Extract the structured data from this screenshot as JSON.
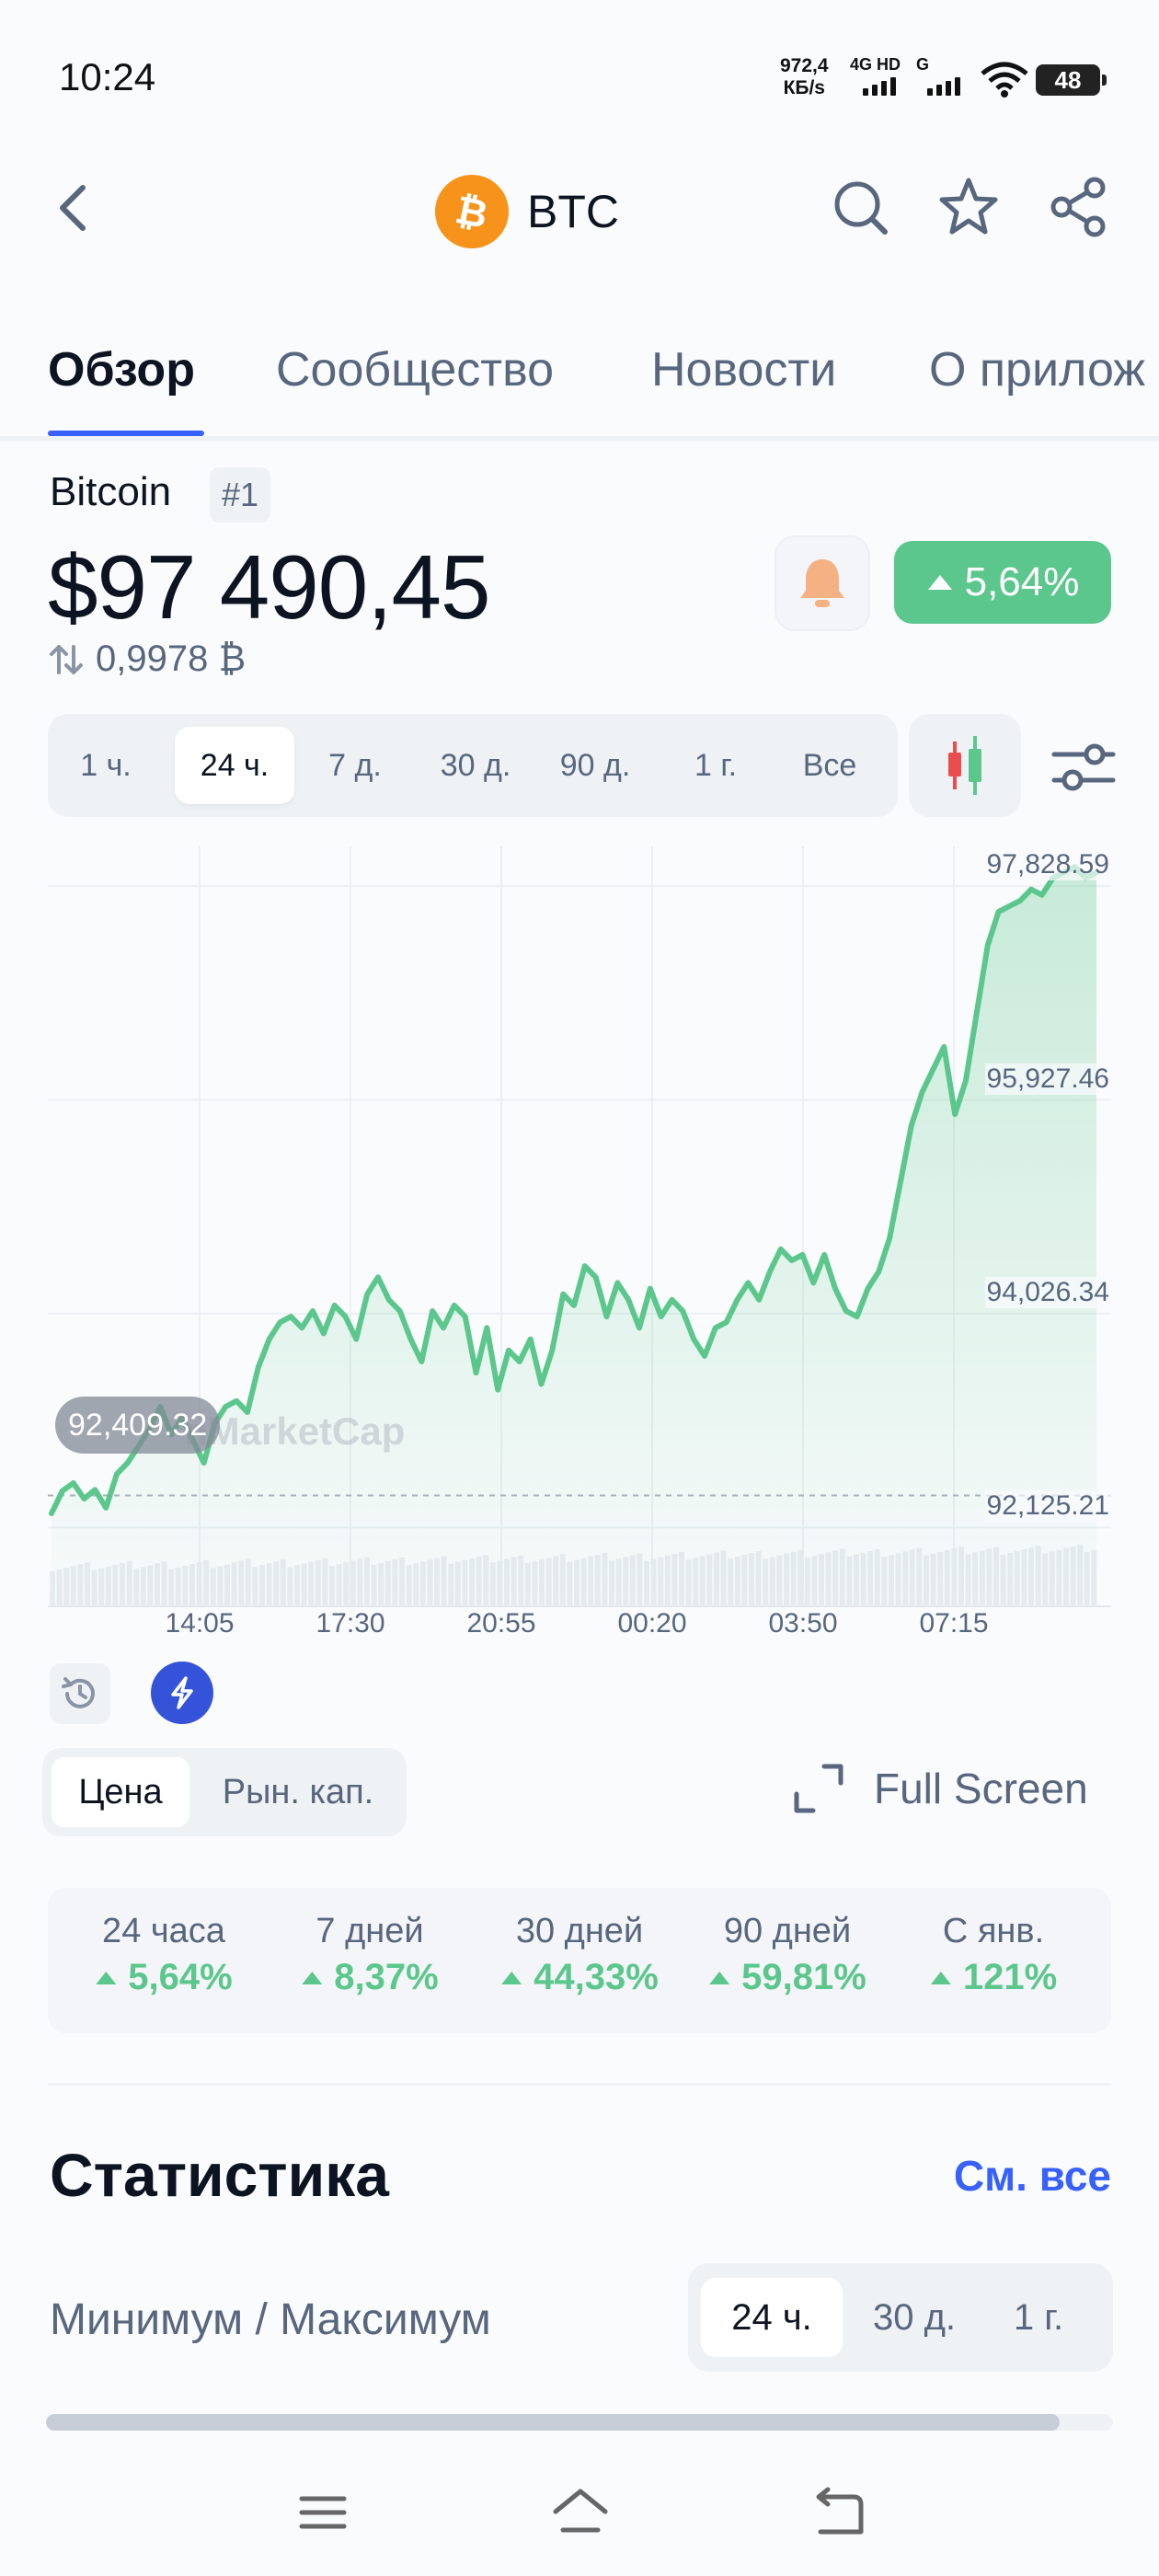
{
  "status_bar": {
    "time": "10:24",
    "speed_value": "972,4",
    "speed_unit": "КБ/s",
    "network_1": "4G HD",
    "network_2": "G",
    "battery": "48"
  },
  "header": {
    "symbol": "BTC",
    "icons": [
      "back-icon",
      "bitcoin-logo-icon",
      "search-icon",
      "star-icon",
      "share-icon"
    ]
  },
  "tabs": [
    {
      "label": "Обзор",
      "active": true
    },
    {
      "label": "Сообщество",
      "active": false
    },
    {
      "label": "Новости",
      "active": false
    },
    {
      "label": "О прилож",
      "active": false
    }
  ],
  "coin": {
    "name": "Bitcoin",
    "rank": "#1",
    "price": "$97 490,45",
    "btc_price": "0,9978 ₿",
    "change_24h": "5,64%",
    "change_color": "#5cc78c"
  },
  "time_ranges": [
    {
      "label": "1 ч.",
      "active": false
    },
    {
      "label": "24 ч.",
      "active": true
    },
    {
      "label": "7 д.",
      "active": false
    },
    {
      "label": "30 д.",
      "active": false
    },
    {
      "label": "90 д.",
      "active": false
    },
    {
      "label": "1 г.",
      "active": false
    },
    {
      "label": "Все",
      "active": false
    }
  ],
  "chart_data": {
    "type": "area",
    "y_ticks": [
      "97,828.59",
      "95,927.46",
      "94,026.34",
      "92,125.21"
    ],
    "ylim": [
      91800,
      98100
    ],
    "x_ticks": [
      "14:05",
      "17:30",
      "20:55",
      "00:20",
      "03:50",
      "07:15"
    ],
    "open_price": "92,409.32",
    "open_value": 92409.32,
    "watermark": "nMarketCap",
    "line_color": "#5cc78c",
    "series": [
      {
        "x": [
          0,
          1,
          2,
          3,
          4,
          5,
          6,
          7,
          8,
          9,
          10,
          11,
          12,
          13,
          14,
          15,
          16,
          17,
          18,
          19,
          20,
          21,
          22,
          23,
          24,
          25,
          26,
          27,
          28,
          29,
          30,
          31,
          32,
          33,
          34,
          35,
          36,
          37,
          38,
          39,
          40,
          41,
          42,
          43,
          44,
          45,
          46,
          47,
          48,
          49,
          50,
          51,
          52,
          53,
          54,
          55,
          56,
          57,
          58,
          59,
          60,
          61,
          62,
          63,
          64,
          65,
          66,
          67,
          68,
          69,
          70,
          71,
          72,
          73,
          74,
          75,
          76,
          77,
          78,
          79,
          80,
          81,
          82,
          83,
          84,
          85,
          86,
          87,
          88,
          89,
          90,
          91,
          92,
          93,
          94,
          95,
          96
        ],
        "y": [
          92250,
          92450,
          92520,
          92380,
          92460,
          92300,
          92600,
          92700,
          92850,
          93000,
          93200,
          92950,
          93100,
          92900,
          92700,
          93050,
          93200,
          93250,
          93150,
          93550,
          93800,
          93950,
          94000,
          93900,
          94050,
          93850,
          94100,
          94000,
          93800,
          94200,
          94350,
          94150,
          94050,
          93800,
          93600,
          94050,
          93900,
          94100,
          94000,
          93500,
          93900,
          93350,
          93700,
          93600,
          93800,
          93400,
          93700,
          94200,
          94100,
          94450,
          94350,
          94000,
          94300,
          94150,
          93900,
          94250,
          94000,
          94150,
          94050,
          93800,
          93650,
          93900,
          93950,
          94150,
          94300,
          94150,
          94400,
          94600,
          94500,
          94550,
          94300,
          94550,
          94250,
          94050,
          94000,
          94250,
          94400,
          94700,
          95200,
          95700,
          96000,
          96200,
          96400,
          95800,
          96100,
          96700,
          97300,
          97600,
          97650,
          97700,
          97800,
          97750,
          97900,
          97950,
          98000,
          97900,
          97950
        ]
      }
    ]
  },
  "chart_controls": {
    "price_label": "Цена",
    "mcap_label": "Рын. кап.",
    "fullscreen_label": "Full Screen",
    "icons": [
      "history-icon",
      "lightning-icon",
      "fullscreen-icon",
      "candlestick-icon",
      "settings-sliders-icon"
    ]
  },
  "performance": [
    {
      "label": "24 часа",
      "value": "5,64%"
    },
    {
      "label": "7 дней",
      "value": "8,37%"
    },
    {
      "label": "30 дней",
      "value": "44,33%"
    },
    {
      "label": "90 дней",
      "value": "59,81%"
    },
    {
      "label": "С янв.",
      "value": "121%"
    }
  ],
  "statistics": {
    "title": "Статистика",
    "see_all": "См. все",
    "minmax_label": "Минимум / Максимум",
    "minmax_ranges": [
      {
        "label": "24 ч.",
        "active": true
      },
      {
        "label": "30 д.",
        "active": false
      },
      {
        "label": "1 г.",
        "active": false
      }
    ],
    "range_position": 0.95
  },
  "navbar": {
    "icons": [
      "menu-icon",
      "home-icon",
      "back-nav-icon"
    ]
  }
}
